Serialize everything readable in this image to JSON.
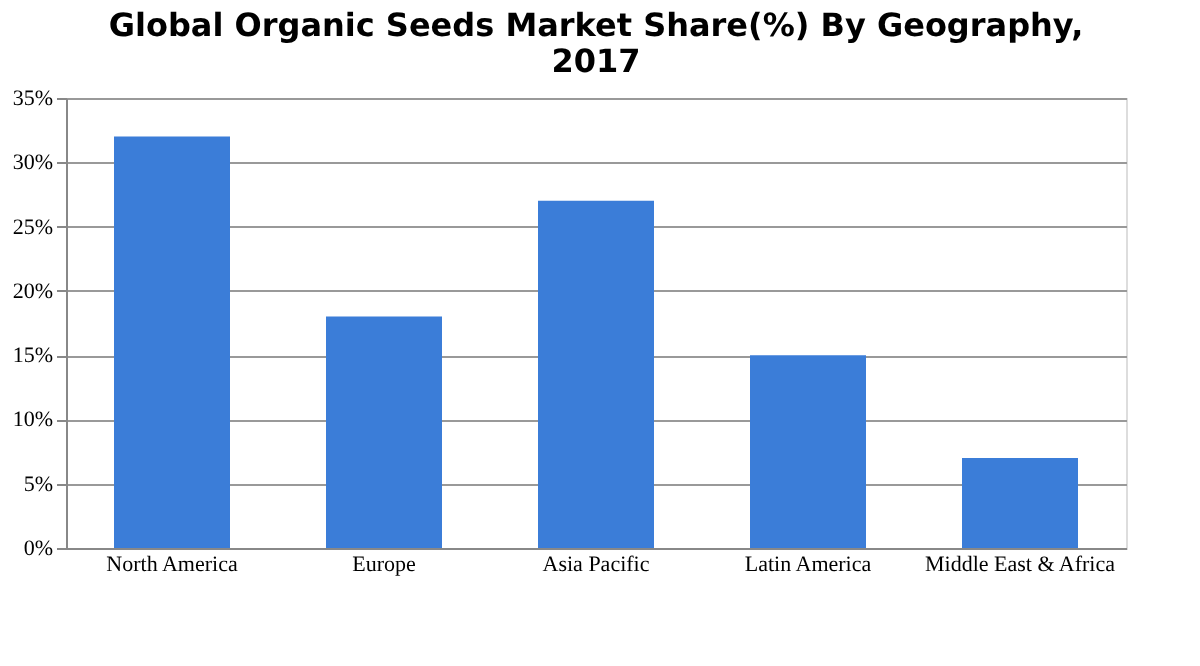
{
  "chart_data": {
    "type": "bar",
    "title": "Global Organic Seeds Market Share(%) By Geography, 2017",
    "categories": [
      "North America",
      "Europe",
      "Asia Pacific",
      "Latin America",
      "Middle East & Africa"
    ],
    "values": [
      32,
      18,
      27,
      15,
      7
    ],
    "color": "#3b7dd8",
    "ylim": [
      0,
      35
    ],
    "yticks": [
      {
        "value": 0,
        "label": "0%"
      },
      {
        "value": 5,
        "label": "5%"
      },
      {
        "value": 10,
        "label": "10%"
      },
      {
        "value": 15,
        "label": "15%"
      },
      {
        "value": 20,
        "label": "20%"
      },
      {
        "value": 25,
        "label": "25%"
      },
      {
        "value": 30,
        "label": "30%"
      },
      {
        "value": 35,
        "label": "35%"
      }
    ],
    "grid": "y"
  }
}
